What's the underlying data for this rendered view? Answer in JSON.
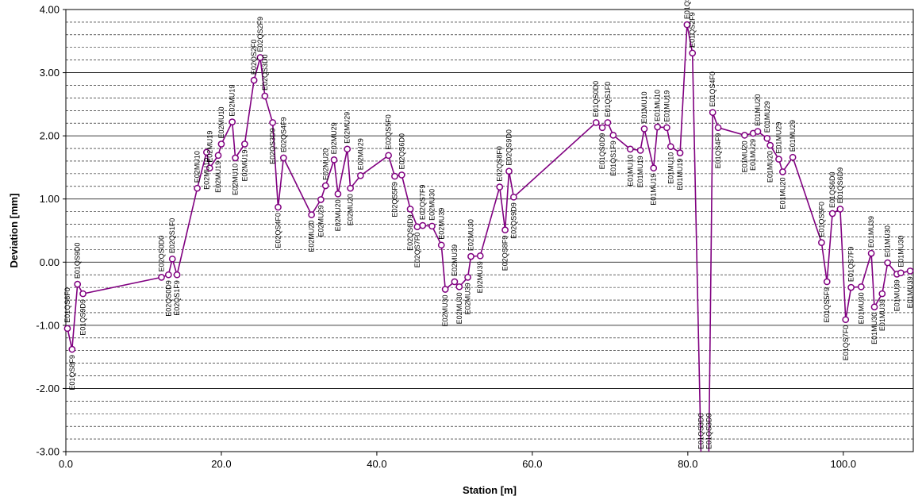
{
  "chart_data": {
    "type": "line",
    "title": "",
    "xlabel": "Station [m]",
    "ylabel": "Deviation [mm]",
    "xlim": [
      0,
      109
    ],
    "ylim": [
      -3,
      4
    ],
    "x_ticks": [
      0,
      20,
      40,
      60,
      80,
      100
    ],
    "x_tick_labels": [
      "0.0",
      "20.0",
      "40.0",
      "60.0",
      "80.0",
      "100.0"
    ],
    "y_ticks": [
      4,
      3,
      2,
      1,
      0,
      -1,
      -2,
      -3
    ],
    "y_tick_labels": [
      "4.00",
      "3.00",
      "2.00",
      "1.00",
      "0.00",
      "-1.00",
      "-2.00",
      "-3.00"
    ],
    "grid": {
      "major_y": true,
      "minor_y_dashed": true
    },
    "line_color": "#800080",
    "series": [
      {
        "points": [
          {
            "x": 0.2,
            "y": -1.05,
            "label": "E01QS8F0",
            "pos": "above"
          },
          {
            "x": 0.8,
            "y": -1.38,
            "label": "E01QS8F9",
            "pos": "below"
          },
          {
            "x": 1.5,
            "y": -0.35,
            "label": "E01QS9D0",
            "pos": "above"
          },
          {
            "x": 2.2,
            "y": -0.5,
            "label": "E01QS9D9",
            "pos": "below"
          },
          {
            "x": 12.3,
            "y": -0.24,
            "label": "E02QS0D0",
            "pos": "above"
          },
          {
            "x": 13.2,
            "y": -0.2,
            "label": "E02QS0D9",
            "pos": "below"
          },
          {
            "x": 13.7,
            "y": 0.05,
            "label": "E02QS1F0",
            "pos": "above"
          },
          {
            "x": 14.3,
            "y": -0.2,
            "label": "E02QS1F9",
            "pos": "below"
          },
          {
            "x": 16.9,
            "y": 1.17,
            "label": "E02MU10",
            "pos": "above"
          },
          {
            "x": 18.1,
            "y": 1.74,
            "label": "E02MU10",
            "pos": "below"
          },
          {
            "x": 18.5,
            "y": 1.49,
            "label": "E02MU19",
            "pos": "above"
          },
          {
            "x": 19.6,
            "y": 1.69,
            "label": "E02MU19",
            "pos": "below"
          },
          {
            "x": 20.0,
            "y": 1.87,
            "label": "E02MU10",
            "pos": "above"
          },
          {
            "x": 21.4,
            "y": 2.22,
            "label": "E02MU19",
            "pos": "above"
          },
          {
            "x": 21.8,
            "y": 1.65,
            "label": "E02MU10",
            "pos": "below"
          },
          {
            "x": 23.0,
            "y": 1.87,
            "label": "E02MU19",
            "pos": "below"
          },
          {
            "x": 24.2,
            "y": 2.88,
            "label": "E02QS2F0",
            "pos": "above"
          },
          {
            "x": 25.0,
            "y": 3.24,
            "label": "E02QS2F9",
            "pos": "above"
          },
          {
            "x": 25.6,
            "y": 2.63,
            "label": "E02QS3D0",
            "pos": "above"
          },
          {
            "x": 26.6,
            "y": 2.21,
            "label": "E02QS3D9",
            "pos": "below"
          },
          {
            "x": 27.3,
            "y": 0.87,
            "label": "E02QS4F0",
            "pos": "below"
          },
          {
            "x": 28.0,
            "y": 1.65,
            "label": "E02QS4F9",
            "pos": "above"
          },
          {
            "x": 31.6,
            "y": 0.75,
            "label": "E02MU20",
            "pos": "below"
          },
          {
            "x": 32.8,
            "y": 0.99,
            "label": "E02MU29",
            "pos": "below"
          },
          {
            "x": 33.4,
            "y": 1.21,
            "label": "E02MU20",
            "pos": "above"
          },
          {
            "x": 34.5,
            "y": 1.62,
            "label": "E02MU29",
            "pos": "above"
          },
          {
            "x": 35.0,
            "y": 1.08,
            "label": "E02MU20",
            "pos": "below"
          },
          {
            "x": 36.2,
            "y": 1.79,
            "label": "E02MU29",
            "pos": "above"
          },
          {
            "x": 36.6,
            "y": 1.17,
            "label": "E02MU20",
            "pos": "below"
          },
          {
            "x": 37.9,
            "y": 1.37,
            "label": "E02MU29",
            "pos": "above"
          },
          {
            "x": 41.5,
            "y": 1.69,
            "label": "E02QS5F0",
            "pos": "above"
          },
          {
            "x": 42.3,
            "y": 1.36,
            "label": "E02QS5F9",
            "pos": "below"
          },
          {
            "x": 43.2,
            "y": 1.38,
            "label": "E02QS6D0",
            "pos": "above"
          },
          {
            "x": 44.3,
            "y": 0.84,
            "label": "E02QS6D9",
            "pos": "below"
          },
          {
            "x": 45.2,
            "y": 0.56,
            "label": "E02QS7F0",
            "pos": "below"
          },
          {
            "x": 45.9,
            "y": 0.58,
            "label": "E02QS7F9",
            "pos": "above"
          },
          {
            "x": 47.1,
            "y": 0.57,
            "label": "E02MU30",
            "pos": "above"
          },
          {
            "x": 48.3,
            "y": 0.27,
            "label": "E02MU39",
            "pos": "above"
          },
          {
            "x": 48.8,
            "y": -0.43,
            "label": "E02MU30",
            "pos": "below"
          },
          {
            "x": 50.0,
            "y": -0.31,
            "label": "E02MU39",
            "pos": "above"
          },
          {
            "x": 50.6,
            "y": -0.39,
            "label": "E02MU30",
            "pos": "below"
          },
          {
            "x": 51.7,
            "y": -0.24,
            "label": "E02MU39",
            "pos": "below"
          },
          {
            "x": 52.1,
            "y": 0.09,
            "label": "E02MU30",
            "pos": "above"
          },
          {
            "x": 53.3,
            "y": 0.1,
            "label": "E02MU39",
            "pos": "below"
          },
          {
            "x": 55.8,
            "y": 1.19,
            "label": "E02QS8F0",
            "pos": "above"
          },
          {
            "x": 56.5,
            "y": 0.51,
            "label": "E02QS8F9",
            "pos": "below"
          },
          {
            "x": 57.0,
            "y": 1.44,
            "label": "E02QS9D0",
            "pos": "above"
          },
          {
            "x": 57.6,
            "y": 1.03,
            "label": "E02QS9D9",
            "pos": "below"
          },
          {
            "x": 68.2,
            "y": 2.21,
            "label": "E01QS0D0",
            "pos": "above"
          },
          {
            "x": 69.0,
            "y": 2.13,
            "label": "E01QS0D9",
            "pos": "below"
          },
          {
            "x": 69.7,
            "y": 2.21,
            "label": "E01QS1F0",
            "pos": "above"
          },
          {
            "x": 70.4,
            "y": 2.01,
            "label": "E01QS1F9",
            "pos": "below"
          },
          {
            "x": 72.6,
            "y": 1.79,
            "label": "E01MU10",
            "pos": "below"
          },
          {
            "x": 73.9,
            "y": 1.77,
            "label": "E01MU19",
            "pos": "below"
          },
          {
            "x": 74.4,
            "y": 2.11,
            "label": "E01MU10",
            "pos": "above"
          },
          {
            "x": 75.6,
            "y": 1.49,
            "label": "E01MU19",
            "pos": "below"
          },
          {
            "x": 76.1,
            "y": 2.14,
            "label": "E01MU10",
            "pos": "above"
          },
          {
            "x": 77.3,
            "y": 2.13,
            "label": "E01MU19",
            "pos": "above"
          },
          {
            "x": 77.8,
            "y": 1.83,
            "label": "E01MU10",
            "pos": "below"
          },
          {
            "x": 79.0,
            "y": 1.73,
            "label": "E01MU19",
            "pos": "below"
          },
          {
            "x": 79.9,
            "y": 3.76,
            "label": "E01QS2F0",
            "pos": "above"
          },
          {
            "x": 80.6,
            "y": 3.31,
            "label": "E01QS2F9",
            "pos": "above"
          },
          {
            "x": 81.7,
            "y": -3.05,
            "label": "E01QS3D0",
            "pos": "above"
          },
          {
            "x": 82.7,
            "y": -3.05,
            "label": "E01QS3D9",
            "pos": "above"
          },
          {
            "x": 83.2,
            "y": 2.37,
            "label": "E01QS4F0",
            "pos": "above"
          },
          {
            "x": 83.9,
            "y": 2.13,
            "label": "E01QS4F9",
            "pos": "below"
          },
          {
            "x": 87.3,
            "y": 2.01,
            "label": "E01MU20",
            "pos": "below"
          },
          {
            "x": 88.4,
            "y": 2.04,
            "label": "E01MU29",
            "pos": "below"
          },
          {
            "x": 89.0,
            "y": 2.07,
            "label": "E01MU20",
            "pos": "above"
          },
          {
            "x": 90.2,
            "y": 1.96,
            "label": "E01MU29",
            "pos": "above"
          },
          {
            "x": 90.6,
            "y": 1.85,
            "label": "E01MU20",
            "pos": "below"
          },
          {
            "x": 91.7,
            "y": 1.63,
            "label": "E01MU29",
            "pos": "above"
          },
          {
            "x": 92.2,
            "y": 1.43,
            "label": "E01MU20",
            "pos": "below"
          },
          {
            "x": 93.5,
            "y": 1.66,
            "label": "E01MU29",
            "pos": "above"
          },
          {
            "x": 97.2,
            "y": 0.31,
            "label": "E01QS5F0",
            "pos": "above"
          },
          {
            "x": 97.9,
            "y": -0.31,
            "label": "E01QS5F9",
            "pos": "below"
          },
          {
            "x": 98.6,
            "y": 0.77,
            "label": "E01QS6D0",
            "pos": "above"
          },
          {
            "x": 99.6,
            "y": 0.84,
            "label": "E01QS6D9",
            "pos": "above"
          },
          {
            "x": 100.3,
            "y": -0.91,
            "label": "E01QS7F0",
            "pos": "below"
          },
          {
            "x": 101.0,
            "y": -0.4,
            "label": "E01QS7F9",
            "pos": "above"
          },
          {
            "x": 102.3,
            "y": -0.39,
            "label": "E01MU30",
            "pos": "below"
          },
          {
            "x": 103.6,
            "y": 0.14,
            "label": "E01MU39",
            "pos": "above"
          },
          {
            "x": 104.0,
            "y": -0.71,
            "label": "E01MU30",
            "pos": "below"
          },
          {
            "x": 105.0,
            "y": -0.5,
            "label": "E01MU39",
            "pos": "below"
          },
          {
            "x": 105.7,
            "y": -0.01,
            "label": "E01MU30",
            "pos": "above"
          },
          {
            "x": 106.9,
            "y": -0.19,
            "label": "E01MU39",
            "pos": "below"
          },
          {
            "x": 107.4,
            "y": -0.17,
            "label": "E01MU30",
            "pos": "above"
          },
          {
            "x": 108.6,
            "y": -0.14,
            "label": "E01MU39",
            "pos": "below"
          }
        ]
      }
    ]
  }
}
